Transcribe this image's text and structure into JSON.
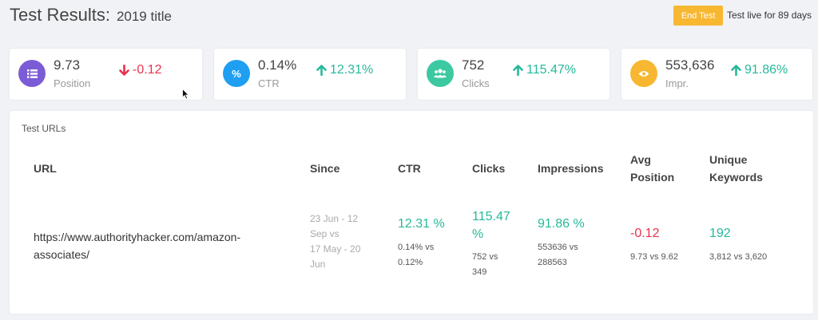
{
  "header": {
    "title": "Test Results:",
    "subtitle": "2019 title",
    "end_button": "End Test",
    "live_text": "Test live for 89 days"
  },
  "cards": [
    {
      "value": "9.73",
      "label": "Position",
      "delta": "-0.12",
      "direction": "down",
      "color": "#7c5cd6",
      "icon": "list-icon"
    },
    {
      "value": "0.14%",
      "label": "CTR",
      "delta": "12.31%",
      "direction": "up",
      "color": "#1e9ff2",
      "icon": "percent-icon"
    },
    {
      "value": "752",
      "label": "Clicks",
      "delta": "115.47%",
      "direction": "up",
      "color": "#3cc9a2",
      "icon": "users-icon"
    },
    {
      "value": "553,636",
      "label": "Impr.",
      "delta": "91.86%",
      "direction": "up",
      "color": "#f7b731",
      "icon": "eye-icon"
    }
  ],
  "panel": {
    "title": "Test URLs",
    "headers": {
      "url": "URL",
      "since": "Since",
      "ctr": "CTR",
      "clicks": "Clicks",
      "impressions": "Impressions",
      "avg_position_1": "Avg",
      "avg_position_2": "Position",
      "unique_keywords_1": "Unique",
      "unique_keywords_2": "Keywords"
    },
    "row": {
      "url_1": "https://www.authorityhacker.com/amazon-",
      "url_2": "associates/",
      "since": [
        "23 Jun - 12",
        "Sep vs",
        "17 May - 20",
        "Jun"
      ],
      "ctr": "12.31 %",
      "ctr_detail": [
        "0.14% vs",
        "0.12%"
      ],
      "clicks": [
        "115.47",
        "%"
      ],
      "clicks_detail": [
        "752 vs",
        "349"
      ],
      "impressions": "91.86 %",
      "impressions_detail": [
        "553636 vs",
        "288563"
      ],
      "avg_position": "-0.12",
      "avg_position_detail": "9.73 vs 9.62",
      "unique_keywords": "192",
      "unique_keywords_detail": "3,812 vs 3,620"
    }
  },
  "colors": {
    "up": "#26b99a",
    "down": "#e8334c",
    "button": "#f7b731"
  }
}
